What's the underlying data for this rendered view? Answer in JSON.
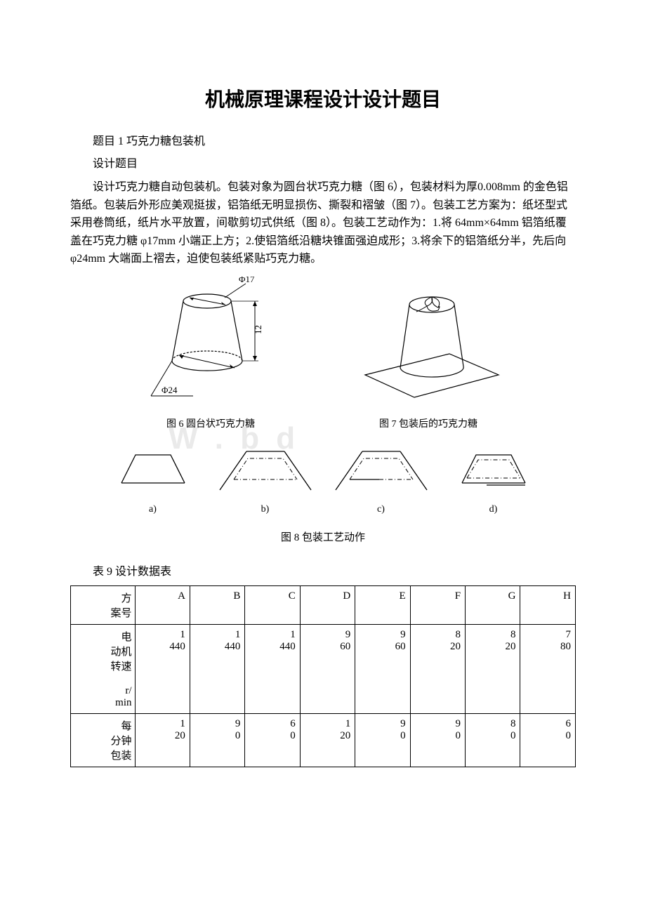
{
  "title": "机械原理课程设计设计题目",
  "line1": "题目 1 巧克力糖包装机",
  "line2": "设计题目",
  "body": "设计巧克力糖自动包装机。包装对象为圆台状巧克力糖（图 6），包装材料为厚0.008mm 的金色铝箔纸。包装后外形应美观挺拔，铝箔纸无明显损伤、撕裂和褶皱（图 7）。包装工艺方案为：纸坯型式采用卷筒纸，纸片水平放置，间歇剪切式供纸（图 8）。包装工艺动作为：1.将 64mm×64mm 铝箔纸覆盖在巧克力糖 φ17mm 小端正上方；2.使铝箔纸沿糖块锥面强迫成形；3.将余下的铝箔纸分半，先后向 φ24mm 大端面上褶去，迫使包装纸紧贴巧克力糖。",
  "fig6": {
    "caption": "图 6 圆台状巧克力糖",
    "top_dim": "Φ17",
    "bottom_dim": "Φ24",
    "height_dim": "12"
  },
  "fig7": {
    "caption": "图 7 包装后的巧克力糖"
  },
  "fig8": {
    "caption": "图 8 包装工艺动作",
    "labels": [
      "a)",
      "b)",
      "c)",
      "d)"
    ]
  },
  "table": {
    "title": "表 9 设计数据表",
    "columns": [
      "方案号",
      "A",
      "B",
      "C",
      "D",
      "E",
      "F",
      "G",
      "H"
    ],
    "rows": [
      {
        "header": "电动机转速\nr/min",
        "header_html": "电<br>动机<br>转速<br><br>r/<br>min",
        "values": [
          "1440",
          "1440",
          "1440",
          "960",
          "960",
          "820",
          "820",
          "780"
        ]
      },
      {
        "header": "每分钟包装",
        "header_html": "每<br>分钟<br>包装",
        "values": [
          "120",
          "90",
          "60",
          "120",
          "90",
          "90",
          "80",
          "60"
        ]
      }
    ]
  },
  "watermark": "W  . b d"
}
